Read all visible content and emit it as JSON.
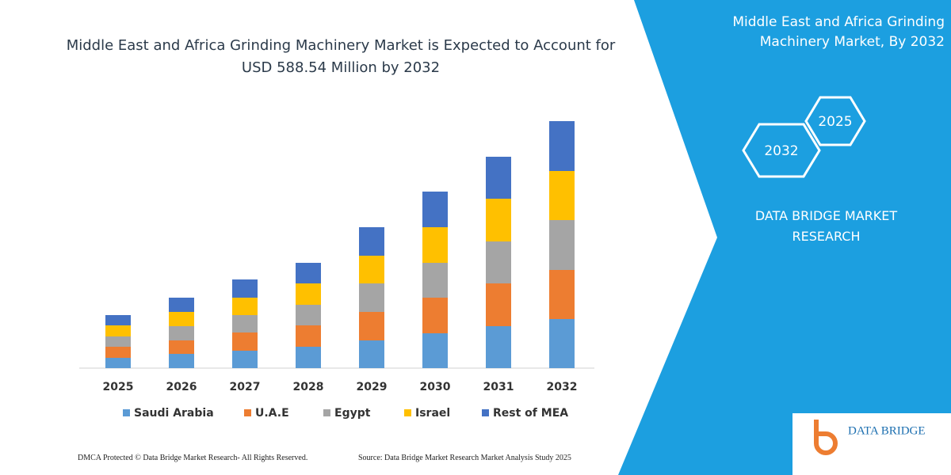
{
  "chart_data": {
    "type": "stacked-bar",
    "title": "Middle East and Africa Grinding Machinery Market is Expected to Account for USD 588.54 Million by 2032",
    "categories": [
      "2025",
      "2026",
      "2027",
      "2028",
      "2029",
      "2030",
      "2031",
      "2032"
    ],
    "series": [
      {
        "name": "Saudi Arabia",
        "color": "#5b9bd5",
        "values": [
          13,
          18,
          22,
          27,
          35,
          44,
          53,
          62
        ]
      },
      {
        "name": "U.A.E",
        "color": "#ed7d31",
        "values": [
          14,
          17,
          23,
          27,
          36,
          45,
          54,
          62
        ]
      },
      {
        "name": "Egypt",
        "color": "#a5a5a5",
        "values": [
          13,
          18,
          22,
          26,
          36,
          44,
          53,
          63
        ]
      },
      {
        "name": "Israel",
        "color": "#ffc000",
        "values": [
          14,
          18,
          22,
          27,
          35,
          45,
          54,
          62
        ]
      },
      {
        "name": "Rest of MEA",
        "color": "#4472c4",
        "values": [
          13,
          18,
          23,
          26,
          36,
          45,
          53,
          63
        ]
      }
    ],
    "ylim": [
      0,
      320
    ],
    "legend": "bottom"
  },
  "panel": {
    "title": "Middle East and Africa Grinding Machinery Market, By 2032",
    "hex_labels": [
      "2025",
      "2032"
    ],
    "brand": "DATA BRIDGE MARKET RESEARCH"
  },
  "footer": {
    "left": "DMCA Protected © Data Bridge Market Research-  All Rights Reserved.",
    "right": "Source: Data Bridge Market Research  Market Analysis Study 2025",
    "logo": "DATA BRIDGE"
  }
}
